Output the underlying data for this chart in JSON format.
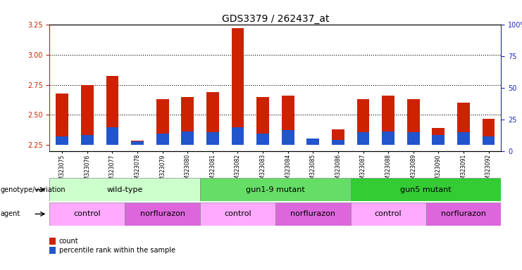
{
  "title": "GDS3379 / 262437_at",
  "samples": [
    "GSM323075",
    "GSM323076",
    "GSM323077",
    "GSM323078",
    "GSM323079",
    "GSM323080",
    "GSM323081",
    "GSM323082",
    "GSM323083",
    "GSM323084",
    "GSM323085",
    "GSM323086",
    "GSM323087",
    "GSM323088",
    "GSM323089",
    "GSM323090",
    "GSM323091",
    "GSM323092"
  ],
  "count_values": [
    2.68,
    2.75,
    2.82,
    2.29,
    2.63,
    2.65,
    2.69,
    3.22,
    2.65,
    2.66,
    2.27,
    2.38,
    2.63,
    2.66,
    2.63,
    2.39,
    2.6,
    2.47
  ],
  "percentile_values": [
    7,
    8,
    14,
    3,
    9,
    11,
    10,
    14,
    9,
    12,
    5,
    4,
    10,
    11,
    10,
    8,
    10,
    7
  ],
  "ylim_left": [
    2.2,
    3.25
  ],
  "ylim_right": [
    0,
    100
  ],
  "yticks_left": [
    2.25,
    2.5,
    2.75,
    3.0,
    3.25
  ],
  "yticks_right": [
    0,
    25,
    50,
    75,
    100
  ],
  "ytick_labels_right": [
    "0",
    "25",
    "50",
    "75",
    "100%"
  ],
  "bar_bottom": 2.25,
  "red_color": "#cc2200",
  "blue_color": "#2255cc",
  "genotype_groups": [
    {
      "label": "wild-type",
      "start": 0,
      "end": 6,
      "color": "#ccffcc"
    },
    {
      "label": "gun1-9 mutant",
      "start": 6,
      "end": 12,
      "color": "#66dd66"
    },
    {
      "label": "gun5 mutant",
      "start": 12,
      "end": 18,
      "color": "#33cc33"
    }
  ],
  "agent_groups": [
    {
      "label": "control",
      "start": 0,
      "end": 3,
      "color": "#ffaaff"
    },
    {
      "label": "norflurazon",
      "start": 3,
      "end": 6,
      "color": "#dd66dd"
    },
    {
      "label": "control",
      "start": 6,
      "end": 9,
      "color": "#ffaaff"
    },
    {
      "label": "norflurazon",
      "start": 9,
      "end": 12,
      "color": "#dd66dd"
    },
    {
      "label": "control",
      "start": 12,
      "end": 15,
      "color": "#ffaaff"
    },
    {
      "label": "norflurazon",
      "start": 15,
      "end": 18,
      "color": "#dd66dd"
    }
  ],
  "legend_items": [
    {
      "label": "count",
      "color": "#cc2200"
    },
    {
      "label": "percentile rank within the sample",
      "color": "#2255cc"
    }
  ],
  "tick_color_left": "#cc2200",
  "tick_color_right": "#2222cc"
}
